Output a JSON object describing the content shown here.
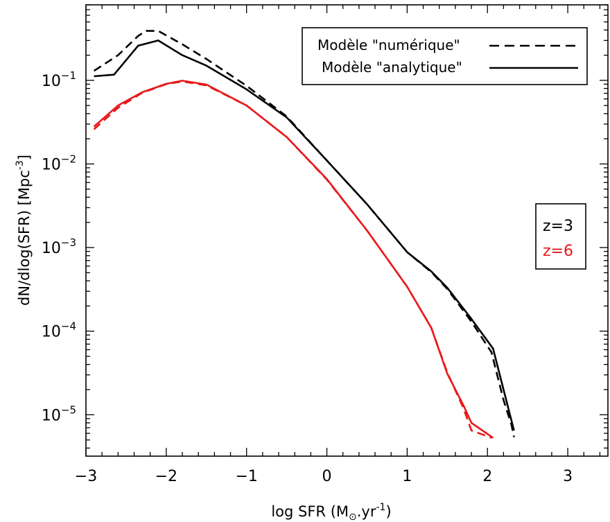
{
  "chart_data": {
    "type": "line",
    "title": "",
    "xlabel": "log SFR (M",
    "xlabel_sun": "⊙",
    "xlabel_rest": ".yr",
    "xlabel_sup": "-1",
    "xlabel_close": ")",
    "ylabel": "dN/dlog(SFR)  [Mpc",
    "ylabel_sup": "-3",
    "ylabel_close": "]",
    "xlim": [
      -3,
      3.5
    ],
    "ylim": [
      3.2e-06,
      0.8
    ],
    "y_scale": "log",
    "x_ticks": [
      {
        "value": -3,
        "label": "−3"
      },
      {
        "value": -2,
        "label": "−2"
      },
      {
        "value": -1,
        "label": "−1"
      },
      {
        "value": 0,
        "label": "0"
      },
      {
        "value": 1,
        "label": "1"
      },
      {
        "value": 2,
        "label": "2"
      },
      {
        "value": 3,
        "label": "3"
      }
    ],
    "y_ticks": [
      {
        "value": 0.1,
        "base": "10",
        "exp": "-1"
      },
      {
        "value": 0.01,
        "base": "10",
        "exp": "-2"
      },
      {
        "value": 0.001,
        "base": "10",
        "exp": "-3"
      },
      {
        "value": 0.0001,
        "base": "10",
        "exp": "-4"
      },
      {
        "value": 1e-05,
        "base": "10",
        "exp": "-5"
      }
    ],
    "legend_position": "top-right",
    "legend": [
      {
        "label": "Modèle \"numérique\"",
        "style": "dashed"
      },
      {
        "label": "Modèle \"analytique\"",
        "style": "solid"
      }
    ],
    "redshift_box": {
      "position": "right",
      "items": [
        {
          "label": "z=3",
          "color": "#000000"
        },
        {
          "label": "z=6",
          "color": "#e8191c"
        }
      ]
    },
    "series": [
      {
        "redshift": "z=3",
        "model": "numérique",
        "color": "#000000",
        "style": "dashed",
        "x": [
          -2.9,
          -2.6,
          -2.35,
          -2.25,
          -2.1,
          -1.8,
          -1.5,
          -1.0,
          -0.5,
          0.0,
          0.5,
          1.0,
          1.3,
          1.5,
          1.8,
          2.05,
          2.2,
          2.3,
          2.33
        ],
        "y": [
          0.13,
          0.2,
          0.34,
          0.39,
          0.39,
          0.27,
          0.18,
          0.086,
          0.037,
          0.011,
          0.0033,
          0.00088,
          0.00051,
          0.00032,
          0.00013,
          5.6e-05,
          1.5e-05,
          7.5e-06,
          5.4e-06
        ]
      },
      {
        "redshift": "z=3",
        "model": "analytique",
        "color": "#000000",
        "style": "solid",
        "x": [
          -2.9,
          -2.65,
          -2.35,
          -2.1,
          -1.8,
          -1.5,
          -1.0,
          -0.5,
          0.0,
          0.5,
          1.0,
          1.3,
          1.5,
          1.8,
          2.07,
          2.2,
          2.33
        ],
        "y": [
          0.112,
          0.117,
          0.26,
          0.3,
          0.2,
          0.15,
          0.078,
          0.036,
          0.011,
          0.0033,
          0.00088,
          0.00052,
          0.00033,
          0.00014,
          6.2e-05,
          2e-05,
          6.5e-06
        ]
      },
      {
        "redshift": "z=6",
        "model": "numérique",
        "color": "#e8191c",
        "style": "dashed",
        "x": [
          -2.9,
          -2.6,
          -2.3,
          -2.0,
          -1.8,
          -1.5,
          -1.0,
          -0.5,
          0.0,
          0.5,
          1.0,
          1.3,
          1.5,
          1.7,
          1.8,
          2.05
        ],
        "y": [
          0.026,
          0.047,
          0.071,
          0.09,
          0.097,
          0.087,
          0.05,
          0.021,
          0.0065,
          0.0016,
          0.00034,
          0.00011,
          3.2e-05,
          1.2e-05,
          6.5e-06,
          5.3e-06
        ]
      },
      {
        "redshift": "z=6",
        "model": "analytique",
        "color": "#e8191c",
        "style": "solid",
        "x": [
          -2.9,
          -2.6,
          -2.3,
          -2.0,
          -1.8,
          -1.5,
          -1.0,
          -0.5,
          0.0,
          0.5,
          1.0,
          1.3,
          1.5,
          1.7,
          1.8,
          2.07
        ],
        "y": [
          0.028,
          0.05,
          0.072,
          0.091,
          0.099,
          0.089,
          0.05,
          0.021,
          0.0066,
          0.0016,
          0.00034,
          0.00011,
          3.1e-05,
          1.3e-05,
          8e-06,
          5.3e-06
        ]
      }
    ]
  }
}
